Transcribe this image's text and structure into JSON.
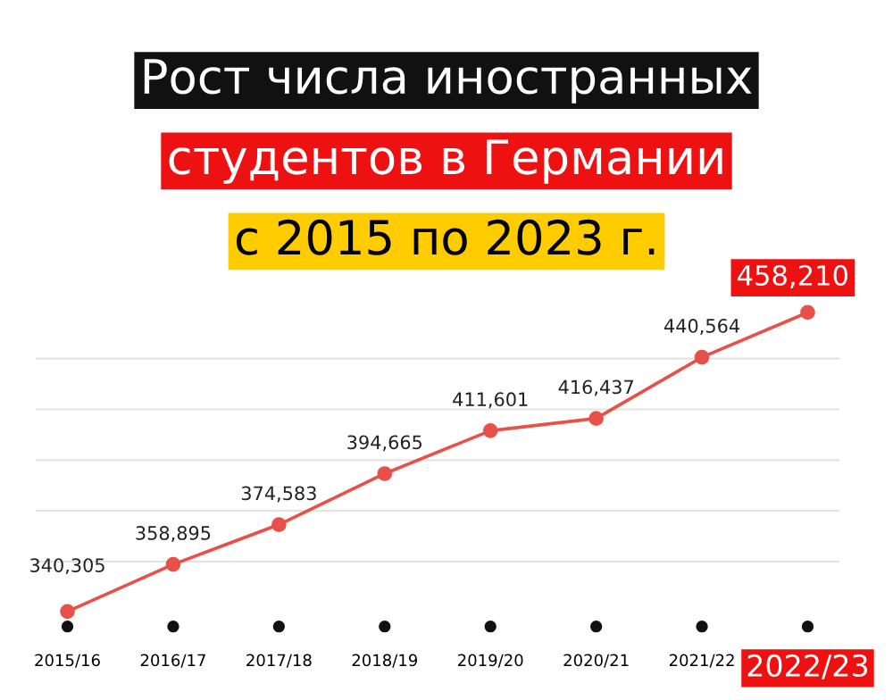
{
  "chart_data": {
    "type": "line",
    "title": "Рост числа иностранных\nстудентов в Германии\nс 2015 по 2023 г.",
    "categories": [
      "2015/16",
      "2016/17",
      "2017/18",
      "2018/19",
      "2019/20",
      "2020/21",
      "2021/22",
      "2022/23"
    ],
    "series": [
      {
        "color": "#e8504a",
        "values": [
          340305,
          358895,
          374583,
          394665,
          411601,
          416437,
          440564,
          458210
        ],
        "value_labels": [
          "340,305",
          "358,895",
          "374,583",
          "394,665",
          "411,601",
          "416,437",
          "440,564",
          "458,210"
        ]
      }
    ],
    "yticks": [
      {
        "value": 360000,
        "label": null
      },
      {
        "value": 380000,
        "label": null
      },
      {
        "value": 400000,
        "label": null
      },
      {
        "value": 420000,
        "label": null
      },
      {
        "value": 440000,
        "label": null
      }
    ],
    "tick_labels": "x",
    "grid": "y",
    "marker": "circle",
    "line_style": "solid"
  }
}
